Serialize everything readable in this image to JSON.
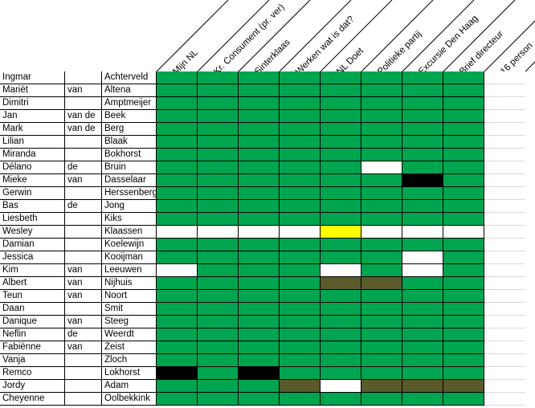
{
  "colors": {
    "G": "#00a550",
    "W": "#ffffff",
    "B": "#000000",
    "Y": "#ffff00",
    "O": "#5a5a2a"
  },
  "columns": [
    "Mijn NL",
    "Kr. Consument (pr. ver)",
    "Sinterklaas",
    "Werken wat is dat?",
    "NL Doet",
    "Politieke partij",
    "Excursie Den Haag",
    "Brief directeur",
    "16 person"
  ],
  "rows": [
    {
      "first": "Ingmar",
      "mid": "",
      "last": "Achterveld",
      "cells": "GGGGGGGGW"
    },
    {
      "first": "Mariët",
      "mid": "van",
      "last": "Altena",
      "cells": "GGGGGGGGW"
    },
    {
      "first": "Dimitri",
      "mid": "",
      "last": "Amptmeijer",
      "cells": "GGGGGGGGW"
    },
    {
      "first": "Jan",
      "mid": "van de",
      "last": "Beek",
      "cells": "GGGGGGGGW"
    },
    {
      "first": "Mark",
      "mid": "van de",
      "last": "Berg",
      "cells": "GGGGGGGGW"
    },
    {
      "first": "Lilian",
      "mid": "",
      "last": "Blaak",
      "cells": "GGGGGGGGW"
    },
    {
      "first": "Miranda",
      "mid": "",
      "last": "Bokhorst",
      "cells": "GGGGGGGGW"
    },
    {
      "first": "Délano",
      "mid": "de",
      "last": "Bruin",
      "cells": "GGGGGWGGW"
    },
    {
      "first": "Mieke",
      "mid": "van",
      "last": "Dasselaar",
      "cells": "GGGGGGBGW"
    },
    {
      "first": "Gerwin",
      "mid": "",
      "last": "Herssenberg",
      "cells": "GGGGGGGGW"
    },
    {
      "first": "Bas",
      "mid": "de",
      "last": "Jong",
      "cells": "GGGGGGGGW"
    },
    {
      "first": "Liesbeth",
      "mid": "",
      "last": "Kiks",
      "cells": "GGGGGGGGW"
    },
    {
      "first": "Wesley",
      "mid": "",
      "last": "Klaassen",
      "cells": "WWWWYWWWW"
    },
    {
      "first": "Damian",
      "mid": "",
      "last": "Koelewijn",
      "cells": "GGGGGGGGW"
    },
    {
      "first": "Jessica",
      "mid": "",
      "last": "Kooijman",
      "cells": "GGGGGGWGW"
    },
    {
      "first": "Kim",
      "mid": "van",
      "last": "Leeuwen",
      "cells": "WGGGWGWGW"
    },
    {
      "first": "Albert",
      "mid": "van",
      "last": "Nijhuis",
      "cells": "GGGGOOGGW"
    },
    {
      "first": "Teun",
      "mid": "van",
      "last": "Noort",
      "cells": "GGGGGGGGW"
    },
    {
      "first": "Daan",
      "mid": "",
      "last": "Smit",
      "cells": "GGGGGGGGW"
    },
    {
      "first": "Danique",
      "mid": "van",
      "last": "Steeg",
      "cells": "GGGGGGGGW"
    },
    {
      "first": "Neflin",
      "mid": "de",
      "last": "Weerdt",
      "cells": "GGGGGGGGW"
    },
    {
      "first": "Fabiënne",
      "mid": "van",
      "last": "Zeist",
      "cells": "GGGGGGGGW"
    },
    {
      "first": "Vanja",
      "mid": "",
      "last": "Zloch",
      "cells": "GGGGGGGGW"
    },
    {
      "first": "Remco",
      "mid": "",
      "last": "Lokhorst",
      "cells": "BGBGGGGGW"
    },
    {
      "first": "Jordy",
      "mid": "",
      "last": "Adam",
      "cells": "GGGOWOOOW"
    },
    {
      "first": "Cheyenne",
      "mid": "",
      "last": "Oolbekkink",
      "cells": "GGGGGGGGW"
    }
  ]
}
